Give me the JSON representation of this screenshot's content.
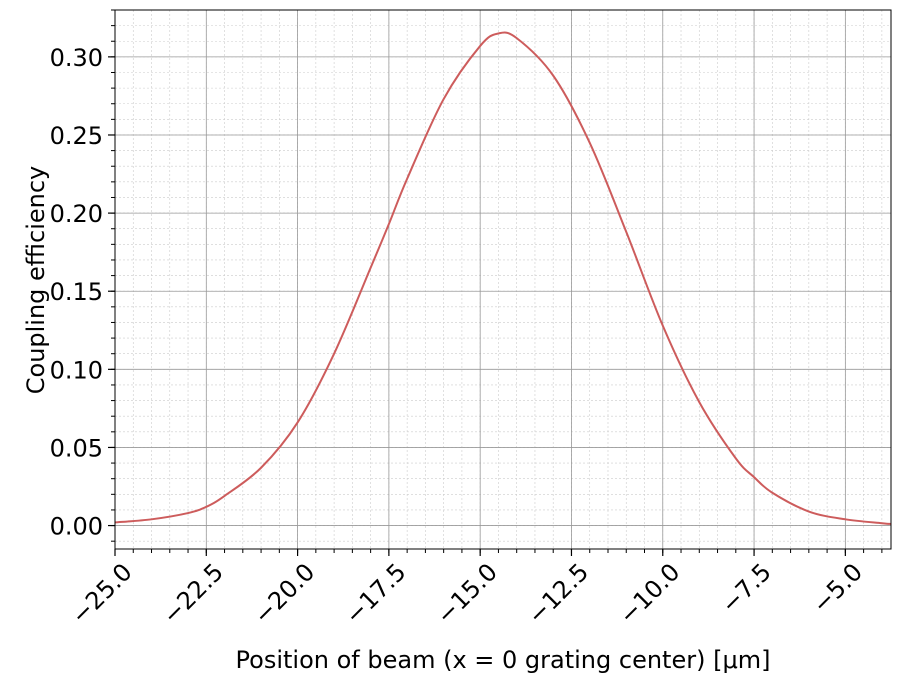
{
  "chart_data": {
    "type": "line",
    "title": "",
    "xlabel": "Position of beam (x = 0 grating center) [μm]",
    "ylabel": "Coupling efficiency",
    "xlim": [
      -25.0,
      -3.75
    ],
    "ylim": [
      -0.015,
      0.33
    ],
    "xticks": [
      -25.0,
      -22.5,
      -20.0,
      -17.5,
      -15.0,
      -12.5,
      -10.0,
      -7.5,
      -5.0
    ],
    "xtick_labels": [
      "−25.0",
      "−22.5",
      "−20.0",
      "−17.5",
      "−15.0",
      "−12.5",
      "−10.0",
      "−7.5",
      "−5.0"
    ],
    "yticks": [
      0.0,
      0.05,
      0.1,
      0.15,
      0.2,
      0.25,
      0.3
    ],
    "ytick_labels": [
      "0.00",
      "0.05",
      "0.10",
      "0.15",
      "0.20",
      "0.25",
      "0.30"
    ],
    "grid": true,
    "minor_grid": true,
    "line_color": "#cd5c5c",
    "series": [
      {
        "x": [
          -25.0,
          -24.0,
          -23.0,
          -22.5,
          -22.0,
          -21.0,
          -20.0,
          -19.0,
          -18.0,
          -17.5,
          -17.0,
          -16.0,
          -15.0,
          -14.5,
          -14.0,
          -13.0,
          -12.0,
          -11.0,
          -10.0,
          -9.0,
          -8.0,
          -7.5,
          -7.0,
          -6.0,
          -5.0,
          -4.0,
          -3.75
        ],
        "y": [
          0.002,
          0.004,
          0.008,
          0.012,
          0.019,
          0.037,
          0.066,
          0.11,
          0.165,
          0.193,
          0.222,
          0.273,
          0.307,
          0.315,
          0.312,
          0.288,
          0.245,
          0.188,
          0.128,
          0.079,
          0.043,
          0.031,
          0.021,
          0.009,
          0.004,
          0.0015,
          0.001
        ]
      }
    ]
  }
}
